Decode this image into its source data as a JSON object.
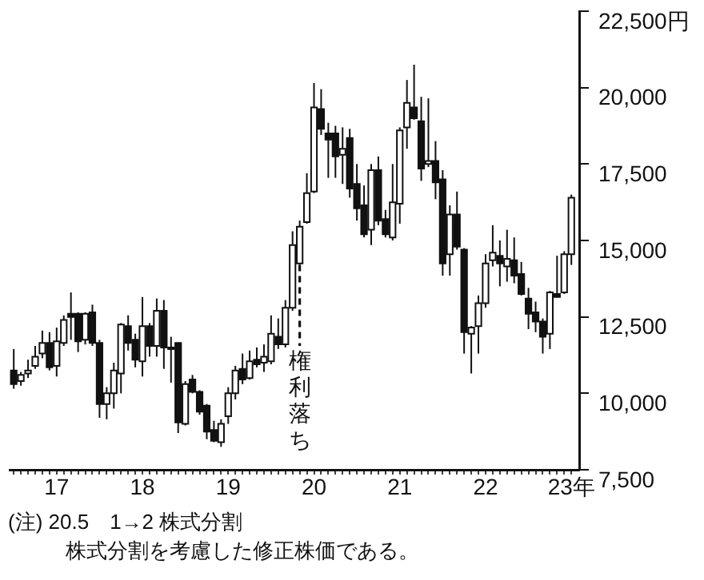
{
  "chart_data": {
    "type": "candlestick",
    "x": [
      "2017-01",
      "2017-02",
      "2017-03",
      "2017-04",
      "2017-05",
      "2017-06",
      "2017-07",
      "2017-08",
      "2017-09",
      "2017-10",
      "2017-11",
      "2017-12",
      "2018-01",
      "2018-02",
      "2018-03",
      "2018-04",
      "2018-05",
      "2018-06",
      "2018-07",
      "2018-08",
      "2018-09",
      "2018-10",
      "2018-11",
      "2018-12",
      "2019-01",
      "2019-02",
      "2019-03",
      "2019-04",
      "2019-05",
      "2019-06",
      "2019-07",
      "2019-08",
      "2019-09",
      "2019-10",
      "2019-11",
      "2019-12",
      "2020-01",
      "2020-02",
      "2020-03",
      "2020-04",
      "2020-05",
      "2020-06",
      "2020-07",
      "2020-08",
      "2020-09",
      "2020-10",
      "2020-11",
      "2020-12",
      "2021-01",
      "2021-02",
      "2021-03",
      "2021-04",
      "2021-05",
      "2021-06",
      "2021-07",
      "2021-08",
      "2021-09",
      "2021-10",
      "2021-11",
      "2021-12",
      "2022-01",
      "2022-02",
      "2022-03",
      "2022-04",
      "2022-05",
      "2022-06",
      "2022-07",
      "2022-08",
      "2022-09",
      "2022-10",
      "2022-11",
      "2022-12",
      "2023-01",
      "2023-02",
      "2023-03",
      "2023-04",
      "2023-05",
      "2023-06",
      "2023-07"
    ],
    "ohlc": [
      [
        10750,
        11450,
        10150,
        10300
      ],
      [
        10400,
        10700,
        10250,
        10600
      ],
      [
        10650,
        11100,
        10500,
        10750
      ],
      [
        10900,
        11550,
        10800,
        11200
      ],
      [
        11300,
        12050,
        11150,
        11650
      ],
      [
        11650,
        12000,
        10750,
        10850
      ],
      [
        10900,
        12150,
        10550,
        11700
      ],
      [
        11650,
        12550,
        11550,
        12400
      ],
      [
        12600,
        13300,
        11750,
        12500
      ],
      [
        12600,
        12650,
        11350,
        11700
      ],
      [
        11750,
        12650,
        11600,
        12600
      ],
      [
        12650,
        12900,
        11550,
        11650
      ],
      [
        11650,
        11750,
        9200,
        9650
      ],
      [
        9650,
        10200,
        9150,
        10000
      ],
      [
        10000,
        11000,
        9500,
        10750
      ],
      [
        10650,
        12300,
        10000,
        12250
      ],
      [
        12200,
        12550,
        11400,
        11650
      ],
      [
        11750,
        11950,
        10850,
        11100
      ],
      [
        11050,
        13150,
        10550,
        12200
      ],
      [
        12200,
        12300,
        11200,
        11550
      ],
      [
        11550,
        13100,
        11200,
        12700
      ],
      [
        12700,
        13050,
        10800,
        11500
      ],
      [
        11500,
        11850,
        10350,
        11450
      ],
      [
        11650,
        11650,
        8700,
        9050
      ],
      [
        9000,
        10400,
        8950,
        10300
      ],
      [
        10450,
        10600,
        10000,
        10050
      ],
      [
        10050,
        10100,
        9300,
        9400
      ],
      [
        9600,
        9650,
        8500,
        8750
      ],
      [
        8800,
        9100,
        8400,
        8450
      ],
      [
        8400,
        9150,
        8250,
        9000
      ],
      [
        9250,
        10200,
        9000,
        10000
      ],
      [
        10000,
        10900,
        9800,
        10750
      ],
      [
        10800,
        11300,
        10300,
        10450
      ],
      [
        10500,
        11400,
        10450,
        11050
      ],
      [
        11100,
        11500,
        10850,
        10950
      ],
      [
        11000,
        11600,
        10700,
        11200
      ],
      [
        11050,
        12550,
        10950,
        11950
      ],
      [
        11850,
        12450,
        11450,
        11600
      ],
      [
        11600,
        13050,
        11500,
        12800
      ],
      [
        12800,
        15300,
        12700,
        14850
      ],
      [
        14250,
        15650,
        14200,
        15450
      ],
      [
        15600,
        17200,
        15550,
        16550
      ],
      [
        16600,
        20150,
        16550,
        19350
      ],
      [
        19300,
        19950,
        18450,
        18650
      ],
      [
        18500,
        18850,
        17050,
        18300
      ],
      [
        18500,
        18750,
        17050,
        17750
      ],
      [
        17800,
        18700,
        16850,
        18000
      ],
      [
        18350,
        18650,
        16400,
        16700
      ],
      [
        16850,
        17500,
        15650,
        16050
      ],
      [
        16150,
        16800,
        15100,
        15200
      ],
      [
        15350,
        17500,
        14850,
        17300
      ],
      [
        17300,
        17750,
        15500,
        15650
      ],
      [
        15700,
        16000,
        15100,
        15200
      ],
      [
        15100,
        17500,
        15000,
        16250
      ],
      [
        16200,
        18700,
        15550,
        18600
      ],
      [
        18700,
        20250,
        18000,
        19500
      ],
      [
        19350,
        20750,
        18950,
        19000
      ],
      [
        18900,
        19700,
        16950,
        17350
      ],
      [
        17500,
        19650,
        17400,
        17600
      ],
      [
        17600,
        18250,
        16350,
        16900
      ],
      [
        17000,
        17300,
        13850,
        14250
      ],
      [
        14550,
        16150,
        13850,
        15850
      ],
      [
        15850,
        16600,
        14700,
        14800
      ],
      [
        14700,
        14750,
        11300,
        12000
      ],
      [
        11950,
        12200,
        10650,
        12150
      ],
      [
        12200,
        13200,
        11300,
        12950
      ],
      [
        12950,
        14550,
        12800,
        14250
      ],
      [
        14350,
        15500,
        14150,
        14600
      ],
      [
        14500,
        15000,
        13500,
        14250
      ],
      [
        14150,
        15350,
        13650,
        14400
      ],
      [
        14350,
        15100,
        13600,
        13850
      ],
      [
        13900,
        14300,
        13200,
        13250
      ],
      [
        13100,
        13450,
        12100,
        12600
      ],
      [
        12650,
        13000,
        12000,
        12350
      ],
      [
        12350,
        12450,
        11300,
        11850
      ],
      [
        11950,
        13350,
        11450,
        13300
      ],
      [
        13250,
        14500,
        13150,
        13150
      ],
      [
        13300,
        14650,
        13250,
        14550
      ],
      [
        14550,
        16500,
        14200,
        16400
      ]
    ],
    "xlim": [
      "2016-12-14",
      "2023-08-04"
    ],
    "ylim": [
      7500,
      22500
    ],
    "yticks": [
      {
        "value": 7500,
        "label": "7,500"
      },
      {
        "value": 10000,
        "label": "10,000"
      },
      {
        "value": 12500,
        "label": "12,500"
      },
      {
        "value": 15000,
        "label": "15,000"
      },
      {
        "value": 17500,
        "label": "17,500"
      },
      {
        "value": 20000,
        "label": "20,000"
      },
      {
        "value": 22500,
        "label": "22,500円"
      }
    ],
    "xticks": [
      {
        "value": "2017-01",
        "label": null
      },
      {
        "value": "2017-02",
        "label": null
      },
      {
        "value": "2017-03",
        "label": null
      },
      {
        "value": "2017-04",
        "label": null
      },
      {
        "value": "2017-05",
        "label": null
      },
      {
        "value": "2017-06",
        "label": null
      },
      {
        "value": "2017-07",
        "label": "17"
      },
      {
        "value": "2017-08",
        "label": null
      },
      {
        "value": "2017-09",
        "label": null
      },
      {
        "value": "2017-10",
        "label": null
      },
      {
        "value": "2017-11",
        "label": null
      },
      {
        "value": "2017-12",
        "label": null
      },
      {
        "value": "2018-01",
        "label": null
      },
      {
        "value": "2018-02",
        "label": null
      },
      {
        "value": "2018-03",
        "label": null
      },
      {
        "value": "2018-04",
        "label": null
      },
      {
        "value": "2018-05",
        "label": null
      },
      {
        "value": "2018-06",
        "label": null
      },
      {
        "value": "2018-07",
        "label": "18"
      },
      {
        "value": "2018-08",
        "label": null
      },
      {
        "value": "2018-09",
        "label": null
      },
      {
        "value": "2018-10",
        "label": null
      },
      {
        "value": "2018-11",
        "label": null
      },
      {
        "value": "2018-12",
        "label": null
      },
      {
        "value": "2019-01",
        "label": null
      },
      {
        "value": "2019-02",
        "label": null
      },
      {
        "value": "2019-03",
        "label": null
      },
      {
        "value": "2019-04",
        "label": null
      },
      {
        "value": "2019-05",
        "label": null
      },
      {
        "value": "2019-06",
        "label": null
      },
      {
        "value": "2019-07",
        "label": "19"
      },
      {
        "value": "2019-08",
        "label": null
      },
      {
        "value": "2019-09",
        "label": null
      },
      {
        "value": "2019-10",
        "label": null
      },
      {
        "value": "2019-11",
        "label": null
      },
      {
        "value": "2019-12",
        "label": null
      },
      {
        "value": "2020-01",
        "label": null
      },
      {
        "value": "2020-02",
        "label": null
      },
      {
        "value": "2020-03",
        "label": null
      },
      {
        "value": "2020-04",
        "label": null
      },
      {
        "value": "2020-05",
        "label": null
      },
      {
        "value": "2020-06",
        "label": null
      },
      {
        "value": "2020-07",
        "label": "20"
      },
      {
        "value": "2020-08",
        "label": null
      },
      {
        "value": "2020-09",
        "label": null
      },
      {
        "value": "2020-10",
        "label": null
      },
      {
        "value": "2020-11",
        "label": null
      },
      {
        "value": "2020-12",
        "label": null
      },
      {
        "value": "2021-01",
        "label": null
      },
      {
        "value": "2021-02",
        "label": null
      },
      {
        "value": "2021-03",
        "label": null
      },
      {
        "value": "2021-04",
        "label": null
      },
      {
        "value": "2021-05",
        "label": null
      },
      {
        "value": "2021-06",
        "label": null
      },
      {
        "value": "2021-07",
        "label": "21"
      },
      {
        "value": "2021-08",
        "label": null
      },
      {
        "value": "2021-09",
        "label": null
      },
      {
        "value": "2021-10",
        "label": null
      },
      {
        "value": "2021-11",
        "label": null
      },
      {
        "value": "2021-12",
        "label": null
      },
      {
        "value": "2022-01",
        "label": null
      },
      {
        "value": "2022-02",
        "label": null
      },
      {
        "value": "2022-03",
        "label": null
      },
      {
        "value": "2022-04",
        "label": null
      },
      {
        "value": "2022-05",
        "label": null
      },
      {
        "value": "2022-06",
        "label": null
      },
      {
        "value": "2022-07",
        "label": "22"
      },
      {
        "value": "2022-08",
        "label": null
      },
      {
        "value": "2022-09",
        "label": null
      },
      {
        "value": "2022-10",
        "label": null
      },
      {
        "value": "2022-11",
        "label": null
      },
      {
        "value": "2022-12",
        "label": null
      },
      {
        "value": "2023-01",
        "label": null
      },
      {
        "value": "2023-02",
        "label": null
      },
      {
        "value": "2023-03",
        "label": null
      },
      {
        "value": "2023-04",
        "label": null
      },
      {
        "value": "2023-05",
        "label": null
      },
      {
        "value": "2023-06",
        "label": null
      },
      {
        "value": "2023-07",
        "label": "23年"
      }
    ],
    "ref_lines": [
      {
        "axis": "x",
        "value": "2020-05",
        "label": "権利落ち",
        "line_style": "dashed"
      }
    ],
    "annotations": [
      "(注) 20.5　1→2 株式分割",
      "株式分割を考慮した修正株価である。"
    ]
  }
}
